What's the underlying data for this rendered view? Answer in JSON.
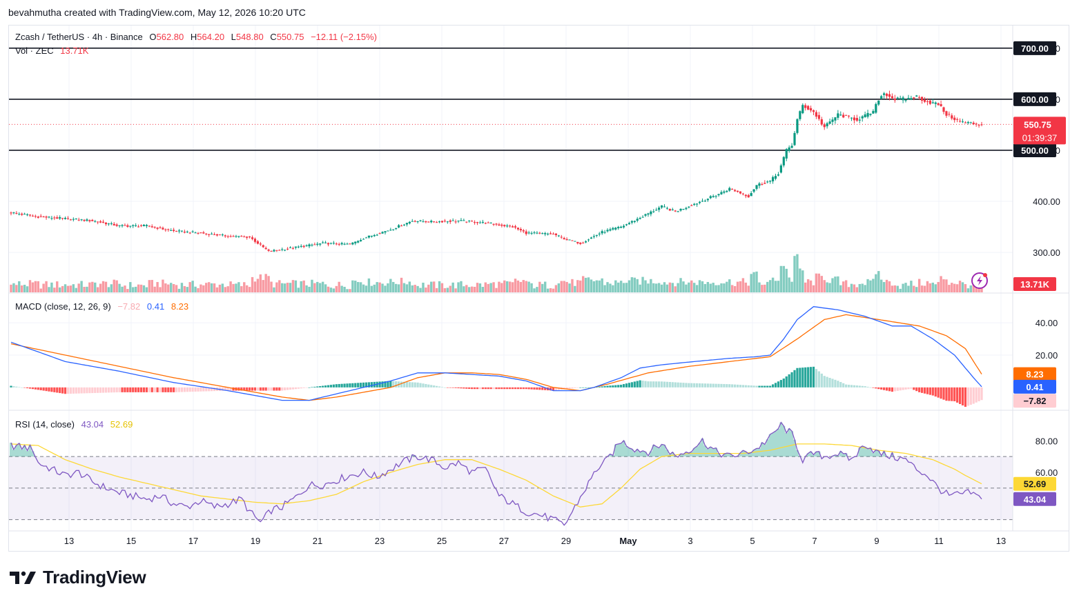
{
  "header": {
    "caption": "bevahmutha created with TradingView.com, May 12, 2026 10:20 UTC"
  },
  "legend": {
    "symbol": "Zcash / TetherUS · 4h · Binance",
    "o_label": "O",
    "o_value": "562.80",
    "h_label": "H",
    "h_value": "564.20",
    "l_label": "L",
    "l_value": "548.80",
    "c_label": "C",
    "c_value": "550.75",
    "change": "−12.11 (−2.15%)",
    "vol_label": "Vol · ZEC",
    "vol_value": "13.71K",
    "macd_label": "MACD (close, 12, 26, 9)",
    "macd_hist": "−7.82",
    "macd_line": "0.41",
    "macd_signal": "8.23",
    "rsi_label": "RSI (14, close)",
    "rsi_value": "43.04",
    "rsi_ma": "52.69"
  },
  "badges": {
    "price": "550.75",
    "countdown": "01:39:37",
    "volume": "13.71K",
    "macd_signal": "8.23",
    "macd_line": "0.41",
    "macd_hist": "−7.82",
    "rsi_ma": "52.69",
    "rsi": "43.04"
  },
  "brand": {
    "name": "TradingView"
  },
  "colors": {
    "up": "#089981",
    "down": "#f23645",
    "macd": "#2962ff",
    "signal": "#ff6d00",
    "rsi": "#7e57c2",
    "rsi_ma": "#fdd835"
  },
  "chart_data": [
    {
      "type": "candlestick",
      "title": "Zcash / TetherUS · 4h · Binance",
      "ylim": [
        230,
        720
      ],
      "y_ticks": [
        "300.00",
        "400.00",
        "500.00",
        "600.00",
        "700.00"
      ],
      "x_ticks": [
        "13",
        "15",
        "17",
        "19",
        "21",
        "23",
        "25",
        "27",
        "29",
        "May",
        "3",
        "5",
        "7",
        "9",
        "11",
        "13"
      ],
      "horizontal_lines": [
        700,
        600,
        500
      ],
      "last_price": 550.75,
      "anchors_close": [
        [
          0,
          378
        ],
        [
          10,
          370
        ],
        [
          20,
          366
        ],
        [
          30,
          362
        ],
        [
          40,
          352
        ],
        [
          50,
          352
        ],
        [
          60,
          342
        ],
        [
          70,
          338
        ],
        [
          80,
          332
        ],
        [
          88,
          330
        ],
        [
          95,
          302
        ],
        [
          105,
          310
        ],
        [
          115,
          318
        ],
        [
          125,
          316
        ],
        [
          130,
          328
        ],
        [
          140,
          345
        ],
        [
          148,
          362
        ],
        [
          155,
          360
        ],
        [
          165,
          362
        ],
        [
          175,
          358
        ],
        [
          185,
          350
        ],
        [
          190,
          338
        ],
        [
          200,
          336
        ],
        [
          205,
          325
        ],
        [
          210,
          318
        ],
        [
          218,
          340
        ],
        [
          225,
          350
        ],
        [
          232,
          368
        ],
        [
          240,
          390
        ],
        [
          245,
          380
        ],
        [
          252,
          395
        ],
        [
          260,
          412
        ],
        [
          265,
          425
        ],
        [
          272,
          410
        ],
        [
          275,
          432
        ],
        [
          280,
          440
        ],
        [
          283,
          455
        ],
        [
          286,
          500
        ],
        [
          288,
          510
        ],
        [
          290,
          560
        ],
        [
          292,
          588
        ],
        [
          296,
          575
        ],
        [
          300,
          545
        ],
        [
          305,
          570
        ],
        [
          312,
          560
        ],
        [
          318,
          575
        ],
        [
          320,
          600
        ],
        [
          322,
          612
        ],
        [
          326,
          600
        ],
        [
          330,
          600
        ],
        [
          334,
          605
        ],
        [
          338,
          595
        ],
        [
          342,
          590
        ],
        [
          345,
          570
        ],
        [
          350,
          556
        ],
        [
          355,
          552
        ],
        [
          358,
          551
        ]
      ],
      "volume_unit": "ZEC",
      "volume_last": "13.71K"
    },
    {
      "type": "line",
      "title": "MACD (close, 12, 26, 9)",
      "ylim": [
        -12,
        52
      ],
      "y_ticks": [
        "20.00",
        "40.00"
      ],
      "series": [
        {
          "name": "MACD",
          "anchors": [
            [
              0,
              28
            ],
            [
              20,
              16
            ],
            [
              40,
              10
            ],
            [
              60,
              3
            ],
            [
              80,
              -2
            ],
            [
              90,
              -5
            ],
            [
              100,
              -8
            ],
            [
              110,
              -8
            ],
            [
              120,
              -4
            ],
            [
              130,
              0
            ],
            [
              140,
              4
            ],
            [
              150,
              9
            ],
            [
              160,
              9
            ],
            [
              170,
              8
            ],
            [
              180,
              7
            ],
            [
              190,
              4
            ],
            [
              200,
              -2
            ],
            [
              210,
              -2
            ],
            [
              215,
              0
            ],
            [
              225,
              6
            ],
            [
              232,
              12
            ],
            [
              240,
              14
            ],
            [
              252,
              16
            ],
            [
              265,
              18
            ],
            [
              275,
              19
            ],
            [
              280,
              20
            ],
            [
              285,
              30
            ],
            [
              290,
              42
            ],
            [
              296,
              50
            ],
            [
              305,
              48
            ],
            [
              315,
              44
            ],
            [
              325,
              38
            ],
            [
              332,
              38
            ],
            [
              340,
              30
            ],
            [
              348,
              20
            ],
            [
              355,
              6
            ],
            [
              358,
              0.41
            ]
          ]
        },
        {
          "name": "Signal",
          "anchors": [
            [
              0,
              27
            ],
            [
              20,
              20
            ],
            [
              40,
              13
            ],
            [
              60,
              6
            ],
            [
              80,
              0
            ],
            [
              100,
              -6
            ],
            [
              110,
              -8
            ],
            [
              120,
              -6
            ],
            [
              140,
              0
            ],
            [
              150,
              6
            ],
            [
              160,
              9
            ],
            [
              170,
              9
            ],
            [
              180,
              8
            ],
            [
              190,
              5
            ],
            [
              200,
              0
            ],
            [
              210,
              -2
            ],
            [
              220,
              2
            ],
            [
              235,
              9
            ],
            [
              250,
              13
            ],
            [
              265,
              16
            ],
            [
              280,
              19
            ],
            [
              290,
              30
            ],
            [
              300,
              42
            ],
            [
              308,
              45
            ],
            [
              320,
              42
            ],
            [
              335,
              38
            ],
            [
              345,
              32
            ],
            [
              352,
              24
            ],
            [
              358,
              8.23
            ]
          ]
        }
      ],
      "histogram_last": -7.82
    },
    {
      "type": "line",
      "title": "RSI (14, close)",
      "ylim": [
        25,
        95
      ],
      "y_ticks": [
        "60.00",
        "80.00"
      ],
      "bands": [
        70,
        50,
        30
      ],
      "series": [
        {
          "name": "RSI",
          "anchors": [
            [
              0,
              77
            ],
            [
              8,
              75
            ],
            [
              10,
              66
            ],
            [
              15,
              62
            ],
            [
              20,
              58
            ],
            [
              25,
              60
            ],
            [
              30,
              54
            ],
            [
              35,
              50
            ],
            [
              40,
              47
            ],
            [
              45,
              45
            ],
            [
              50,
              43
            ],
            [
              55,
              45
            ],
            [
              60,
              40
            ],
            [
              65,
              38
            ],
            [
              70,
              42
            ],
            [
              75,
              38
            ],
            [
              80,
              40
            ],
            [
              85,
              43
            ],
            [
              88,
              35
            ],
            [
              92,
              28
            ],
            [
              96,
              36
            ],
            [
              100,
              38
            ],
            [
              105,
              44
            ],
            [
              110,
              52
            ],
            [
              115,
              52
            ],
            [
              120,
              55
            ],
            [
              125,
              58
            ],
            [
              130,
              60
            ],
            [
              135,
              57
            ],
            [
              140,
              62
            ],
            [
              145,
              67
            ],
            [
              150,
              70
            ],
            [
              155,
              68
            ],
            [
              160,
              63
            ],
            [
              165,
              66
            ],
            [
              170,
              60
            ],
            [
              175,
              62
            ],
            [
              180,
              45
            ],
            [
              185,
              40
            ],
            [
              190,
              35
            ],
            [
              195,
              33
            ],
            [
              200,
              30
            ],
            [
              204,
              26
            ],
            [
              208,
              38
            ],
            [
              212,
              50
            ],
            [
              216,
              62
            ],
            [
              220,
              68
            ],
            [
              225,
              80
            ],
            [
              230,
              75
            ],
            [
              235,
              73
            ],
            [
              240,
              78
            ],
            [
              245,
              70
            ],
            [
              250,
              74
            ],
            [
              255,
              80
            ],
            [
              260,
              73
            ],
            [
              265,
              70
            ],
            [
              270,
              72
            ],
            [
              275,
              75
            ],
            [
              280,
              82
            ],
            [
              284,
              90
            ],
            [
              288,
              84
            ],
            [
              292,
              68
            ],
            [
              296,
              72
            ],
            [
              300,
              70
            ],
            [
              305,
              72
            ],
            [
              310,
              68
            ],
            [
              315,
              78
            ],
            [
              320,
              72
            ],
            [
              325,
              70
            ],
            [
              330,
              68
            ],
            [
              334,
              62
            ],
            [
              338,
              58
            ],
            [
              342,
              50
            ],
            [
              346,
              45
            ],
            [
              350,
              46
            ],
            [
              354,
              47
            ],
            [
              358,
              43.04
            ]
          ]
        },
        {
          "name": "RSI MA",
          "anchors": [
            [
              0,
              78
            ],
            [
              10,
              77
            ],
            [
              20,
              68
            ],
            [
              30,
              62
            ],
            [
              40,
              57
            ],
            [
              50,
              53
            ],
            [
              60,
              49
            ],
            [
              70,
              45
            ],
            [
              80,
              43
            ],
            [
              90,
              41
            ],
            [
              100,
              40
            ],
            [
              110,
              42
            ],
            [
              120,
              46
            ],
            [
              130,
              54
            ],
            [
              140,
              60
            ],
            [
              150,
              65
            ],
            [
              160,
              68
            ],
            [
              170,
              68
            ],
            [
              180,
              62
            ],
            [
              190,
              55
            ],
            [
              200,
              45
            ],
            [
              210,
              38
            ],
            [
              218,
              40
            ],
            [
              225,
              50
            ],
            [
              232,
              62
            ],
            [
              240,
              70
            ],
            [
              250,
              72
            ],
            [
              260,
              72
            ],
            [
              270,
              72
            ],
            [
              280,
              74
            ],
            [
              290,
              78
            ],
            [
              300,
              78
            ],
            [
              310,
              77
            ],
            [
              320,
              74
            ],
            [
              330,
              72
            ],
            [
              340,
              68
            ],
            [
              348,
              62
            ],
            [
              352,
              58
            ],
            [
              358,
              52.69
            ]
          ]
        }
      ]
    }
  ]
}
